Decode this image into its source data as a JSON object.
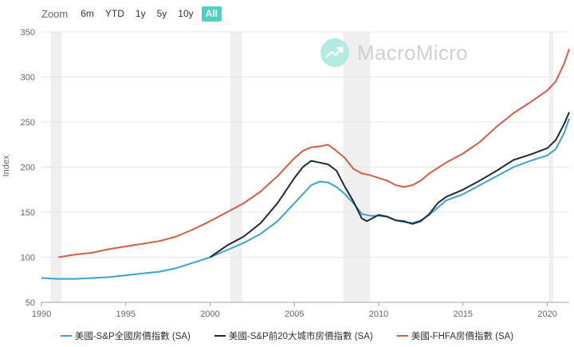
{
  "toolbar": {
    "zoom_label": "Zoom",
    "ranges": [
      "6m",
      "YTD",
      "1y",
      "5y",
      "10y",
      "All"
    ],
    "active_range": "All"
  },
  "watermark": {
    "text": "MacroMicro"
  },
  "colors": {
    "active_button": "#4dd2c2",
    "recession_band": "#efefef",
    "grid": "#e6e6e6"
  },
  "chart_data": {
    "type": "line",
    "ylabel": "Index",
    "xlabel": "",
    "ylim": [
      50,
      350
    ],
    "yticks": [
      50,
      100,
      150,
      200,
      250,
      300,
      350
    ],
    "xlim": [
      1990,
      2021.3
    ],
    "xticks": [
      1990,
      1995,
      2000,
      2005,
      2010,
      2015,
      2020
    ],
    "grid": true,
    "legend_position": "bottom",
    "shaded_periods": [
      [
        1990.55,
        1991.2
      ],
      [
        2001.2,
        2001.9
      ],
      [
        2007.9,
        2009.5
      ],
      [
        2020.1,
        2020.35
      ]
    ],
    "series": [
      {
        "name": "美國-S&P全國房價指數 (SA)",
        "color": "#3ba3cc",
        "x": [
          1990,
          1991,
          1992,
          1993,
          1994,
          1995,
          1996,
          1997,
          1998,
          1999,
          2000,
          2001,
          2002,
          2003,
          2004,
          2005,
          2006,
          2006.5,
          2007,
          2007.5,
          2008,
          2008.5,
          2009,
          2009.5,
          2010,
          2010.5,
          2011,
          2011.5,
          2012,
          2012.5,
          2013,
          2013.5,
          2014,
          2015,
          2016,
          2017,
          2018,
          2019,
          2020,
          2020.5,
          2021,
          2021.3
        ],
        "y": [
          77,
          76,
          76,
          77,
          78,
          80,
          82,
          84,
          88,
          94,
          100,
          108,
          116,
          126,
          140,
          160,
          180,
          184,
          183,
          178,
          170,
          160,
          148,
          146,
          146,
          145,
          141,
          139,
          138,
          141,
          147,
          155,
          163,
          170,
          180,
          190,
          200,
          207,
          213,
          220,
          238,
          254
        ]
      },
      {
        "name": "美國-S&P前20大城市房價指數 (SA)",
        "color": "#1e2a38",
        "x": [
          2000,
          2001,
          2002,
          2003,
          2004,
          2005,
          2005.5,
          2006,
          2006.5,
          2007,
          2007.5,
          2008,
          2008.5,
          2009,
          2009.3,
          2009.5,
          2010,
          2010.5,
          2011,
          2011.5,
          2012,
          2012.5,
          2013,
          2013.5,
          2014,
          2015,
          2016,
          2017,
          2018,
          2019,
          2020,
          2020.5,
          2021,
          2021.3
        ],
        "y": [
          100,
          113,
          123,
          138,
          160,
          188,
          200,
          207,
          205,
          203,
          196,
          178,
          162,
          143,
          140,
          142,
          147,
          145,
          141,
          140,
          137,
          140,
          148,
          160,
          167,
          175,
          185,
          196,
          208,
          214,
          221,
          230,
          248,
          261
        ]
      },
      {
        "name": "美國-FHFA房價指數 (SA)",
        "color": "#d65c45",
        "x": [
          1991,
          1992,
          1993,
          1994,
          1995,
          1996,
          1997,
          1998,
          1999,
          2000,
          2001,
          2002,
          2003,
          2004,
          2005,
          2005.5,
          2006,
          2006.5,
          2007,
          2007.5,
          2008,
          2008.5,
          2009,
          2009.5,
          2010,
          2010.5,
          2011,
          2011.5,
          2012,
          2012.5,
          2013,
          2014,
          2015,
          2016,
          2017,
          2018,
          2019,
          2020,
          2020.5,
          2021,
          2021.3
        ],
        "y": [
          100,
          103,
          105,
          109,
          112,
          115,
          118,
          123,
          131,
          140,
          150,
          160,
          173,
          190,
          210,
          218,
          222,
          223,
          225,
          218,
          210,
          198,
          193,
          191,
          188,
          185,
          180,
          178,
          180,
          185,
          193,
          205,
          215,
          228,
          245,
          260,
          272,
          285,
          295,
          315,
          331
        ]
      }
    ]
  }
}
